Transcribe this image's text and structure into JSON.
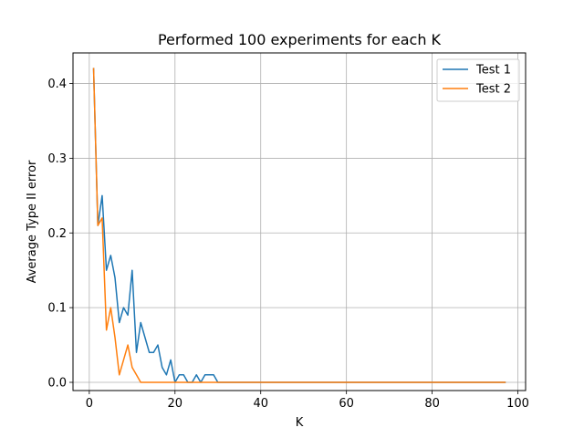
{
  "chart_data": {
    "type": "line",
    "title": "Performed 100 experiments for each K",
    "xlabel": "K",
    "ylabel": "Average Type II error",
    "xlim": [
      -3.8,
      101.8
    ],
    "ylim": [
      -0.011,
      0.441
    ],
    "x_ticks": [
      0,
      20,
      40,
      60,
      80,
      100
    ],
    "y_ticks": [
      0.0,
      0.1,
      0.2,
      0.3,
      0.4
    ],
    "x_tick_labels": [
      "0",
      "20",
      "40",
      "60",
      "80",
      "100"
    ],
    "y_tick_labels": [
      "0.0",
      "0.1",
      "0.2",
      "0.3",
      "0.4"
    ],
    "grid": true,
    "legend_position": "top-right",
    "series": [
      {
        "name": "Test 1",
        "color": "#1f77b4",
        "x": [
          1,
          2,
          3,
          4,
          5,
          6,
          7,
          8,
          9,
          10,
          11,
          12,
          13,
          14,
          15,
          16,
          17,
          18,
          19,
          20,
          21,
          22,
          23,
          24,
          25,
          26,
          27,
          28,
          29,
          30,
          40,
          50,
          60,
          70,
          80,
          90,
          97
        ],
        "y": [
          0.42,
          0.21,
          0.25,
          0.15,
          0.17,
          0.14,
          0.08,
          0.1,
          0.09,
          0.15,
          0.04,
          0.08,
          0.06,
          0.04,
          0.04,
          0.05,
          0.02,
          0.01,
          0.03,
          0.0,
          0.01,
          0.01,
          0.0,
          0.0,
          0.01,
          0.0,
          0.01,
          0.01,
          0.01,
          0.0,
          0.0,
          0.0,
          0.0,
          0.0,
          0.0,
          0.0,
          0.0
        ]
      },
      {
        "name": "Test 2",
        "color": "#ff7f0e",
        "x": [
          1,
          2,
          3,
          4,
          5,
          6,
          7,
          8,
          9,
          10,
          11,
          12,
          13,
          20,
          40,
          60,
          80,
          97
        ],
        "y": [
          0.42,
          0.21,
          0.22,
          0.07,
          0.1,
          0.06,
          0.01,
          0.03,
          0.05,
          0.02,
          0.01,
          0.0,
          0.0,
          0.0,
          0.0,
          0.0,
          0.0,
          0.0
        ]
      }
    ]
  }
}
